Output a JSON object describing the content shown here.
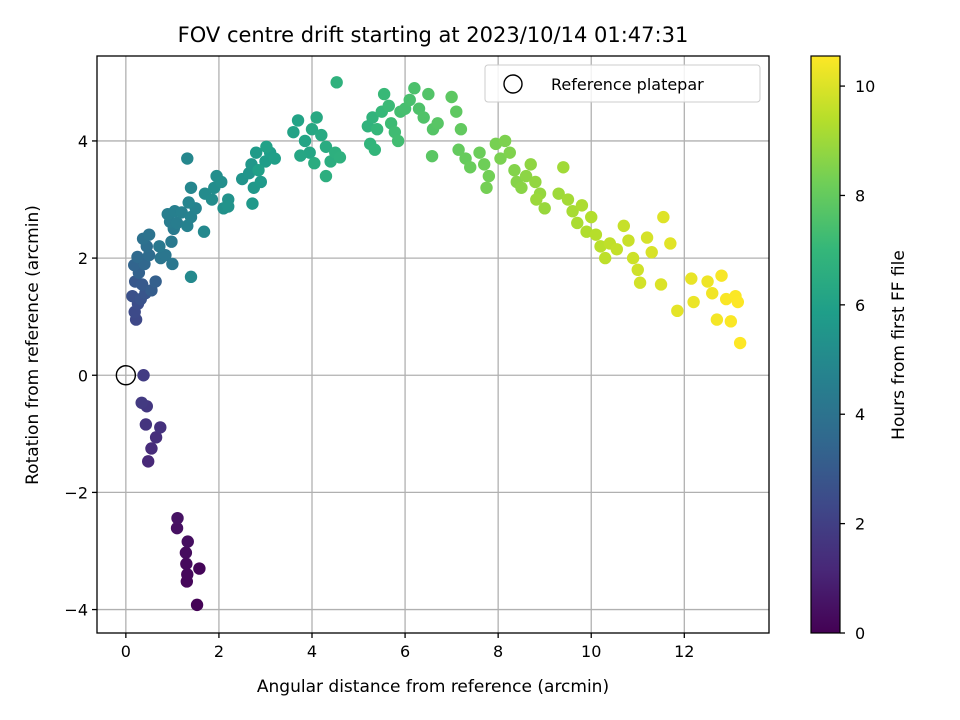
{
  "chart_data": {
    "type": "scatter",
    "title": "FOV centre drift starting at 2023/10/14 01:47:31",
    "xlabel": "Angular distance from reference (arcmin)",
    "ylabel": "Rotation from reference (arcmin)",
    "xlim": [
      -0.62,
      13.82
    ],
    "ylim": [
      -4.4,
      5.45
    ],
    "xticks": [
      0,
      2,
      4,
      6,
      8,
      10,
      12
    ],
    "yticks": [
      -4,
      -2,
      0,
      2,
      4
    ],
    "xtick_labels": [
      "0",
      "2",
      "4",
      "6",
      "8",
      "10",
      "12"
    ],
    "ytick_labels": [
      "−4",
      "−2",
      "0",
      "2",
      "4"
    ],
    "grid": true,
    "legend": {
      "position": "top-right",
      "label": "Reference platepar"
    },
    "reference_point": {
      "x": 0,
      "y": 0
    },
    "colorbar": {
      "label": "Hours from first FF file",
      "min": 0,
      "max": 10.55,
      "ticks": [
        0,
        2,
        4,
        6,
        8,
        10
      ],
      "tick_labels": [
        "0",
        "2",
        "4",
        "6",
        "8",
        "10"
      ],
      "colormap": "viridis",
      "colormap_stops": [
        "#440154",
        "#482878",
        "#3e4989",
        "#31688e",
        "#26828e",
        "#1f9e89",
        "#35b779",
        "#6ece58",
        "#b5de2b",
        "#fde725"
      ]
    },
    "points": [
      {
        "x": 1.53,
        "y": -3.92,
        "c": 0.05
      },
      {
        "x": 1.58,
        "y": -3.3,
        "c": 0.12
      },
      {
        "x": 1.31,
        "y": -3.52,
        "c": 0.18
      },
      {
        "x": 1.32,
        "y": -3.4,
        "c": 0.22
      },
      {
        "x": 1.3,
        "y": -3.22,
        "c": 0.28
      },
      {
        "x": 1.29,
        "y": -3.03,
        "c": 0.33
      },
      {
        "x": 1.33,
        "y": -2.84,
        "c": 0.38
      },
      {
        "x": 1.1,
        "y": -2.61,
        "c": 0.45
      },
      {
        "x": 1.11,
        "y": -2.44,
        "c": 0.5
      },
      {
        "x": 0.48,
        "y": -1.47,
        "c": 1.2
      },
      {
        "x": 0.55,
        "y": -1.25,
        "c": 1.3
      },
      {
        "x": 0.65,
        "y": -1.06,
        "c": 1.4
      },
      {
        "x": 0.74,
        "y": -0.89,
        "c": 1.5
      },
      {
        "x": 0.43,
        "y": -0.84,
        "c": 1.6
      },
      {
        "x": 0.45,
        "y": -0.53,
        "c": 1.7
      },
      {
        "x": 0.34,
        "y": -0.47,
        "c": 1.8
      },
      {
        "x": 0.38,
        "y": 0.0,
        "c": 1.9
      },
      {
        "x": 0.22,
        "y": 0.95,
        "c": 2.3
      },
      {
        "x": 0.19,
        "y": 1.08,
        "c": 2.4
      },
      {
        "x": 0.26,
        "y": 1.22,
        "c": 2.5
      },
      {
        "x": 0.14,
        "y": 1.35,
        "c": 2.6
      },
      {
        "x": 0.32,
        "y": 1.3,
        "c": 2.7
      },
      {
        "x": 0.42,
        "y": 1.4,
        "c": 2.8
      },
      {
        "x": 0.2,
        "y": 1.6,
        "c": 2.9
      },
      {
        "x": 0.35,
        "y": 1.55,
        "c": 3.0
      },
      {
        "x": 0.55,
        "y": 1.45,
        "c": 3.1
      },
      {
        "x": 0.64,
        "y": 1.6,
        "c": 3.2
      },
      {
        "x": 0.28,
        "y": 1.75,
        "c": 3.3
      },
      {
        "x": 0.18,
        "y": 1.88,
        "c": 3.4
      },
      {
        "x": 0.4,
        "y": 1.9,
        "c": 3.5
      },
      {
        "x": 0.25,
        "y": 2.02,
        "c": 3.6
      },
      {
        "x": 0.5,
        "y": 2.05,
        "c": 3.7
      },
      {
        "x": 0.45,
        "y": 2.2,
        "c": 3.8
      },
      {
        "x": 0.37,
        "y": 2.33,
        "c": 3.9
      },
      {
        "x": 0.5,
        "y": 2.4,
        "c": 4.0
      },
      {
        "x": 0.75,
        "y": 2.0,
        "c": 4.1
      },
      {
        "x": 0.85,
        "y": 2.05,
        "c": 4.15
      },
      {
        "x": 1.0,
        "y": 1.9,
        "c": 4.2
      },
      {
        "x": 0.72,
        "y": 2.2,
        "c": 4.25
      },
      {
        "x": 0.98,
        "y": 2.28,
        "c": 4.3
      },
      {
        "x": 1.03,
        "y": 2.5,
        "c": 4.35
      },
      {
        "x": 0.95,
        "y": 2.62,
        "c": 4.4
      },
      {
        "x": 1.1,
        "y": 2.6,
        "c": 4.45
      },
      {
        "x": 0.9,
        "y": 2.75,
        "c": 4.5
      },
      {
        "x": 1.05,
        "y": 2.8,
        "c": 4.55
      },
      {
        "x": 1.2,
        "y": 2.78,
        "c": 4.6
      },
      {
        "x": 1.32,
        "y": 2.55,
        "c": 4.65
      },
      {
        "x": 1.4,
        "y": 2.7,
        "c": 4.7
      },
      {
        "x": 1.5,
        "y": 2.85,
        "c": 4.75
      },
      {
        "x": 1.35,
        "y": 2.95,
        "c": 4.8
      },
      {
        "x": 1.4,
        "y": 3.2,
        "c": 4.85
      },
      {
        "x": 1.32,
        "y": 3.7,
        "c": 4.9
      },
      {
        "x": 1.68,
        "y": 2.45,
        "c": 4.95
      },
      {
        "x": 1.4,
        "y": 1.68,
        "c": 5.0
      },
      {
        "x": 1.7,
        "y": 3.1,
        "c": 5.05
      },
      {
        "x": 1.85,
        "y": 3.0,
        "c": 5.1
      },
      {
        "x": 1.9,
        "y": 3.2,
        "c": 5.15
      },
      {
        "x": 1.95,
        "y": 3.4,
        "c": 5.2
      },
      {
        "x": 2.05,
        "y": 3.3,
        "c": 5.25
      },
      {
        "x": 2.1,
        "y": 2.85,
        "c": 5.3
      },
      {
        "x": 2.2,
        "y": 3.0,
        "c": 5.35
      },
      {
        "x": 2.2,
        "y": 2.88,
        "c": 5.4
      },
      {
        "x": 2.5,
        "y": 3.35,
        "c": 5.45
      },
      {
        "x": 2.65,
        "y": 3.45,
        "c": 5.5
      },
      {
        "x": 2.7,
        "y": 3.6,
        "c": 5.55
      },
      {
        "x": 2.75,
        "y": 3.2,
        "c": 5.6
      },
      {
        "x": 2.72,
        "y": 2.93,
        "c": 5.65
      },
      {
        "x": 2.9,
        "y": 3.3,
        "c": 5.7
      },
      {
        "x": 2.8,
        "y": 3.8,
        "c": 5.75
      },
      {
        "x": 3.0,
        "y": 3.65,
        "c": 5.8
      },
      {
        "x": 3.1,
        "y": 3.8,
        "c": 5.85
      },
      {
        "x": 3.2,
        "y": 3.7,
        "c": 5.9
      },
      {
        "x": 2.85,
        "y": 3.5,
        "c": 5.95
      },
      {
        "x": 3.02,
        "y": 3.9,
        "c": 6.0
      },
      {
        "x": 3.6,
        "y": 4.15,
        "c": 6.05
      },
      {
        "x": 3.7,
        "y": 4.35,
        "c": 6.1
      },
      {
        "x": 3.85,
        "y": 4.0,
        "c": 6.15
      },
      {
        "x": 3.95,
        "y": 3.8,
        "c": 6.2
      },
      {
        "x": 3.75,
        "y": 3.75,
        "c": 6.25
      },
      {
        "x": 4.0,
        "y": 4.2,
        "c": 6.3
      },
      {
        "x": 4.1,
        "y": 4.4,
        "c": 6.35
      },
      {
        "x": 4.2,
        "y": 4.1,
        "c": 6.4
      },
      {
        "x": 4.3,
        "y": 3.9,
        "c": 6.45
      },
      {
        "x": 4.05,
        "y": 3.62,
        "c": 6.5
      },
      {
        "x": 4.4,
        "y": 3.65,
        "c": 6.55
      },
      {
        "x": 4.3,
        "y": 3.4,
        "c": 6.6
      },
      {
        "x": 4.5,
        "y": 3.8,
        "c": 6.65
      },
      {
        "x": 4.6,
        "y": 3.72,
        "c": 6.7
      },
      {
        "x": 4.53,
        "y": 5.0,
        "c": 6.75
      },
      {
        "x": 5.2,
        "y": 4.25,
        "c": 6.8
      },
      {
        "x": 5.3,
        "y": 4.4,
        "c": 6.85
      },
      {
        "x": 5.25,
        "y": 3.95,
        "c": 6.9
      },
      {
        "x": 5.35,
        "y": 3.85,
        "c": 6.95
      },
      {
        "x": 5.4,
        "y": 4.2,
        "c": 7.0
      },
      {
        "x": 5.5,
        "y": 4.5,
        "c": 7.05
      },
      {
        "x": 5.55,
        "y": 4.8,
        "c": 7.1
      },
      {
        "x": 5.65,
        "y": 4.6,
        "c": 7.15
      },
      {
        "x": 5.7,
        "y": 4.3,
        "c": 7.2
      },
      {
        "x": 5.78,
        "y": 4.15,
        "c": 7.25
      },
      {
        "x": 5.85,
        "y": 4.0,
        "c": 7.3
      },
      {
        "x": 5.9,
        "y": 4.5,
        "c": 7.35
      },
      {
        "x": 6.0,
        "y": 4.55,
        "c": 7.4
      },
      {
        "x": 6.1,
        "y": 4.7,
        "c": 7.45
      },
      {
        "x": 6.2,
        "y": 4.9,
        "c": 7.5
      },
      {
        "x": 6.3,
        "y": 4.55,
        "c": 7.55
      },
      {
        "x": 6.4,
        "y": 4.4,
        "c": 7.6
      },
      {
        "x": 6.5,
        "y": 4.8,
        "c": 7.65
      },
      {
        "x": 6.6,
        "y": 4.2,
        "c": 7.7
      },
      {
        "x": 6.7,
        "y": 4.3,
        "c": 7.75
      },
      {
        "x": 6.58,
        "y": 3.74,
        "c": 7.8
      },
      {
        "x": 7.0,
        "y": 4.75,
        "c": 7.85
      },
      {
        "x": 7.1,
        "y": 4.5,
        "c": 7.9
      },
      {
        "x": 7.2,
        "y": 4.2,
        "c": 7.95
      },
      {
        "x": 7.15,
        "y": 3.85,
        "c": 8.0
      },
      {
        "x": 7.3,
        "y": 3.7,
        "c": 8.05
      },
      {
        "x": 7.4,
        "y": 3.55,
        "c": 8.1
      },
      {
        "x": 7.6,
        "y": 3.8,
        "c": 8.15
      },
      {
        "x": 7.7,
        "y": 3.6,
        "c": 8.2
      },
      {
        "x": 7.8,
        "y": 3.4,
        "c": 8.25
      },
      {
        "x": 7.75,
        "y": 3.2,
        "c": 8.3
      },
      {
        "x": 7.95,
        "y": 3.95,
        "c": 8.35
      },
      {
        "x": 8.05,
        "y": 3.7,
        "c": 8.4
      },
      {
        "x": 8.15,
        "y": 4.0,
        "c": 8.45
      },
      {
        "x": 8.25,
        "y": 3.8,
        "c": 8.5
      },
      {
        "x": 8.35,
        "y": 3.5,
        "c": 8.55
      },
      {
        "x": 8.4,
        "y": 3.3,
        "c": 8.6
      },
      {
        "x": 8.5,
        "y": 3.2,
        "c": 8.65
      },
      {
        "x": 8.6,
        "y": 3.4,
        "c": 8.7
      },
      {
        "x": 8.7,
        "y": 3.6,
        "c": 8.75
      },
      {
        "x": 8.8,
        "y": 3.3,
        "c": 8.8
      },
      {
        "x": 8.9,
        "y": 3.1,
        "c": 8.85
      },
      {
        "x": 9.0,
        "y": 2.85,
        "c": 8.9
      },
      {
        "x": 8.82,
        "y": 3.0,
        "c": 8.95
      },
      {
        "x": 9.3,
        "y": 3.1,
        "c": 9.0
      },
      {
        "x": 9.4,
        "y": 3.55,
        "c": 9.05
      },
      {
        "x": 9.5,
        "y": 3.0,
        "c": 9.1
      },
      {
        "x": 9.6,
        "y": 2.8,
        "c": 9.15
      },
      {
        "x": 9.7,
        "y": 2.6,
        "c": 9.2
      },
      {
        "x": 9.8,
        "y": 2.9,
        "c": 9.25
      },
      {
        "x": 9.9,
        "y": 2.45,
        "c": 9.3
      },
      {
        "x": 10.0,
        "y": 2.7,
        "c": 9.35
      },
      {
        "x": 10.1,
        "y": 2.4,
        "c": 9.4
      },
      {
        "x": 10.2,
        "y": 2.2,
        "c": 9.45
      },
      {
        "x": 10.3,
        "y": 2.0,
        "c": 9.5
      },
      {
        "x": 10.4,
        "y": 2.25,
        "c": 9.55
      },
      {
        "x": 10.55,
        "y": 2.15,
        "c": 9.6
      },
      {
        "x": 10.7,
        "y": 2.55,
        "c": 9.65
      },
      {
        "x": 10.8,
        "y": 2.3,
        "c": 9.7
      },
      {
        "x": 10.9,
        "y": 2.0,
        "c": 9.75
      },
      {
        "x": 11.0,
        "y": 1.8,
        "c": 9.8
      },
      {
        "x": 11.05,
        "y": 1.58,
        "c": 9.85
      },
      {
        "x": 11.2,
        "y": 2.35,
        "c": 9.9
      },
      {
        "x": 11.3,
        "y": 2.1,
        "c": 9.95
      },
      {
        "x": 11.5,
        "y": 1.55,
        "c": 10.0
      },
      {
        "x": 11.55,
        "y": 2.7,
        "c": 10.05
      },
      {
        "x": 11.7,
        "y": 2.25,
        "c": 10.1
      },
      {
        "x": 11.85,
        "y": 1.1,
        "c": 10.15
      },
      {
        "x": 12.15,
        "y": 1.65,
        "c": 10.2
      },
      {
        "x": 12.2,
        "y": 1.25,
        "c": 10.25
      },
      {
        "x": 12.5,
        "y": 1.6,
        "c": 10.3
      },
      {
        "x": 12.6,
        "y": 1.4,
        "c": 10.35
      },
      {
        "x": 12.7,
        "y": 0.95,
        "c": 10.4
      },
      {
        "x": 12.8,
        "y": 1.7,
        "c": 10.45
      },
      {
        "x": 12.9,
        "y": 1.3,
        "c": 10.48
      },
      {
        "x": 13.0,
        "y": 0.92,
        "c": 10.5
      },
      {
        "x": 13.1,
        "y": 1.35,
        "c": 10.52
      },
      {
        "x": 13.15,
        "y": 1.25,
        "c": 10.54
      },
      {
        "x": 13.2,
        "y": 0.55,
        "c": 10.55
      }
    ]
  }
}
